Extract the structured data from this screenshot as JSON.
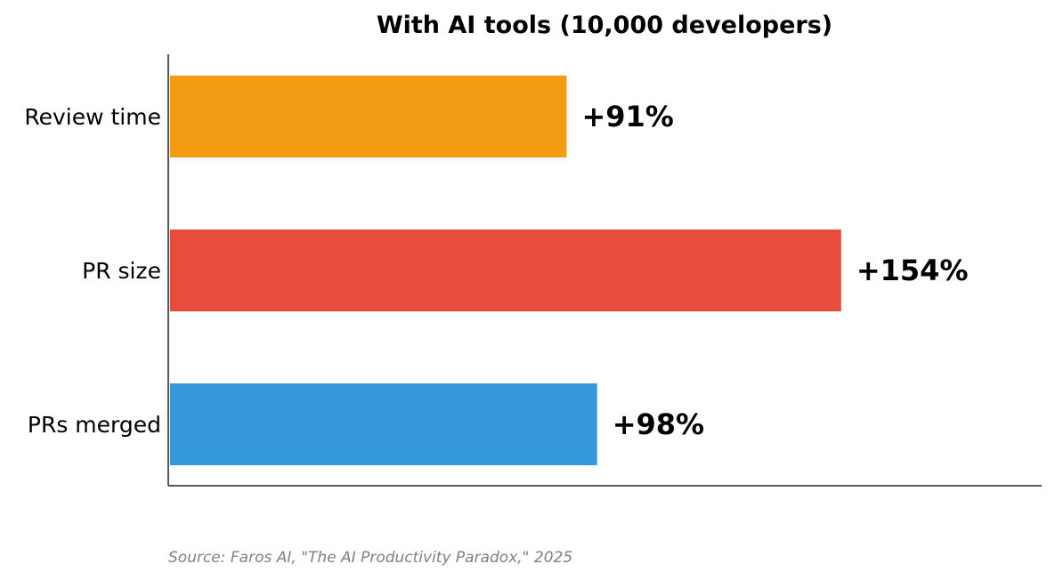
{
  "chart_data": {
    "type": "bar",
    "orientation": "horizontal",
    "title": "With AI tools (10,000 developers)",
    "categories": [
      "Review time",
      "PR size",
      "PRs merged"
    ],
    "values": [
      91,
      154,
      98
    ],
    "value_labels": [
      "+91%",
      "+154%",
      "+98%"
    ],
    "colors": [
      "#f39c12",
      "#e74c3c",
      "#3498db"
    ],
    "xlim": [
      0,
      200
    ],
    "xlabel": "",
    "ylabel": "",
    "grid": false
  },
  "footer": {
    "source": "Source: Faros AI, \"The AI Productivity Paradox,\" 2025"
  }
}
